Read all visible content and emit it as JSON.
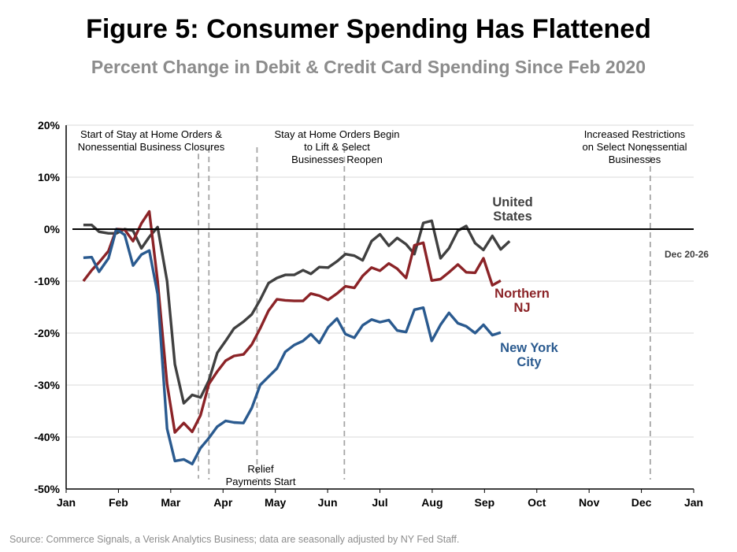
{
  "title": "Figure 5: Consumer Spending Has Flattened",
  "subtitle": "Percent Change in Debit & Credit Card Spending Since Feb 2020",
  "source": "Source: Commerce Signals, a Verisk Analytics Business; data are seasonally adjusted by NY Fed Staff.",
  "chart_data": {
    "type": "line",
    "title": "Figure 5: Consumer Spending Has Flattened",
    "subtitle": "Percent Change in Debit & Credit Card Spending Since Feb 2020",
    "xlabel": "",
    "ylabel": "",
    "x_ticks": [
      "Jan",
      "Feb",
      "Mar",
      "Apr",
      "May",
      "Jun",
      "Jul",
      "Aug",
      "Sep",
      "Oct",
      "Nov",
      "Dec",
      "Jan"
    ],
    "y_ticks": [
      "20%",
      "10%",
      "0%",
      "-10%",
      "-20%",
      "-30%",
      "-40%",
      "-50%"
    ],
    "ylim": [
      -50,
      20
    ],
    "xlim": [
      1,
      13
    ],
    "x_unit": "month of 2020 (1 = Jan 1, 13 = Jan 1 2021)",
    "grid": "horizontal",
    "zero_line": true,
    "x": [
      1.33,
      1.49,
      1.63,
      1.81,
      1.96,
      2.12,
      2.28,
      2.44,
      2.59,
      2.75,
      2.93,
      3.08,
      3.25,
      3.41,
      3.57,
      3.73,
      3.89,
      4.05,
      4.21,
      4.39,
      4.55,
      4.71,
      4.87,
      5.03,
      5.19,
      5.36,
      5.53,
      5.68,
      5.84,
      6.01,
      6.18,
      6.34,
      6.51,
      6.67,
      6.84,
      7.0,
      7.17,
      7.33,
      7.5,
      7.66,
      7.83,
      7.99,
      8.16,
      8.32,
      8.49,
      8.65,
      8.82,
      8.98,
      9.15,
      9.31,
      9.48,
      9.64,
      9.81,
      9.97,
      10.14,
      10.3,
      10.47,
      10.63,
      10.8,
      10.96,
      11.13,
      11.29,
      11.46,
      11.62,
      11.79,
      11.95,
      12.12,
      12.28,
      12.45,
      12.61
    ],
    "series": [
      {
        "name": "United States",
        "color": "#404040",
        "values": [
          0.8,
          0.8,
          -0.5,
          -0.8,
          -0.8,
          0.0,
          -0.3,
          -3.7,
          -1.5,
          0.4,
          -10.0,
          -26.0,
          -33.5,
          -31.9,
          -32.4,
          -29.1,
          -23.8,
          -21.5,
          -19.1,
          -17.8,
          -16.4,
          -13.6,
          -10.4,
          -9.4,
          -8.8,
          -8.8,
          -7.9,
          -8.6,
          -7.3,
          -7.4,
          -6.2,
          -4.8,
          -5.1,
          -6.0,
          -2.3,
          -1.0,
          -3.2,
          -1.7,
          -2.9,
          -4.8,
          1.2,
          1.6,
          -5.6,
          -3.7,
          -0.3,
          0.6,
          -2.7,
          -4.0,
          -1.3,
          -3.9,
          -2.3,
          null,
          null,
          null,
          null,
          null,
          null,
          null,
          null,
          null,
          null,
          null,
          null,
          null,
          null,
          null,
          null,
          null,
          null,
          null
        ]
      },
      {
        "name": "Northern NJ",
        "color": "#8b2327",
        "values": [
          -10.0,
          -7.9,
          -6.4,
          -4.2,
          0.0,
          -0.1,
          -2.3,
          1.1,
          3.4,
          -10.0,
          -29.8,
          -39.1,
          -37.3,
          -39.0,
          -35.8,
          -29.8,
          -27.4,
          -25.3,
          -24.4,
          -24.1,
          -22.2,
          -19.1,
          -15.7,
          -13.5,
          -13.7,
          -13.8,
          -13.8,
          -12.4,
          -12.8,
          -13.6,
          -12.4,
          -11.0,
          -11.3,
          -9.0,
          -7.4,
          -8.0,
          -6.6,
          -7.6,
          -9.4,
          -3.1,
          -2.6,
          -9.9,
          -9.6,
          -8.3,
          -6.8,
          -8.3,
          -8.4,
          -5.6,
          -10.8,
          -9.9,
          null,
          null,
          null,
          null,
          null,
          null,
          null,
          null,
          null,
          null,
          null,
          null,
          null,
          null,
          null,
          null,
          null,
          null,
          null,
          null
        ]
      },
      {
        "name": "New York City",
        "color": "#2a5a8f",
        "values": [
          -5.5,
          -5.4,
          -8.2,
          -5.6,
          0.0,
          -1.1,
          -7.0,
          -4.9,
          -4.1,
          -12.5,
          -38.4,
          -44.6,
          -44.3,
          -45.2,
          -42.1,
          -40.2,
          -38.0,
          -36.9,
          -37.2,
          -37.3,
          -34.4,
          -30.0,
          -28.4,
          -26.8,
          -23.6,
          -22.3,
          -21.5,
          -20.2,
          -21.9,
          -18.9,
          -17.2,
          -20.2,
          -20.9,
          -18.5,
          -17.4,
          -17.9,
          -17.5,
          -19.5,
          -19.8,
          -15.5,
          -15.1,
          -21.5,
          -18.4,
          -16.1,
          -18.1,
          -18.7,
          -20.0,
          -18.4,
          -20.4,
          -19.9,
          null,
          null,
          null,
          null,
          null,
          null,
          null,
          null,
          null,
          null,
          null,
          null,
          null,
          null,
          null,
          null,
          null,
          null,
          null,
          null
        ]
      }
    ],
    "annotations": [
      {
        "lines": [
          "Start of Stay at Home Orders &",
          "Nonessential Business Closures"
        ],
        "x": 3.73
      },
      {
        "lines": [
          "Relief",
          "Payments Start"
        ],
        "x": 4.65
      },
      {
        "lines": [
          "Stay at Home Orders Begin",
          "to Lift & Select",
          "Businesses Reopen"
        ],
        "x": 6.32
      },
      {
        "lines": [
          "Increased Restrictions",
          "on Select Nonessential",
          "Businesses"
        ],
        "x": 12.17
      }
    ],
    "series_labels": [
      {
        "lines": [
          "United",
          "States"
        ]
      },
      {
        "lines": [
          "Northern",
          "NJ"
        ]
      },
      {
        "lines": [
          "New York",
          "City"
        ]
      }
    ],
    "end_label": "Dec 20-26"
  }
}
